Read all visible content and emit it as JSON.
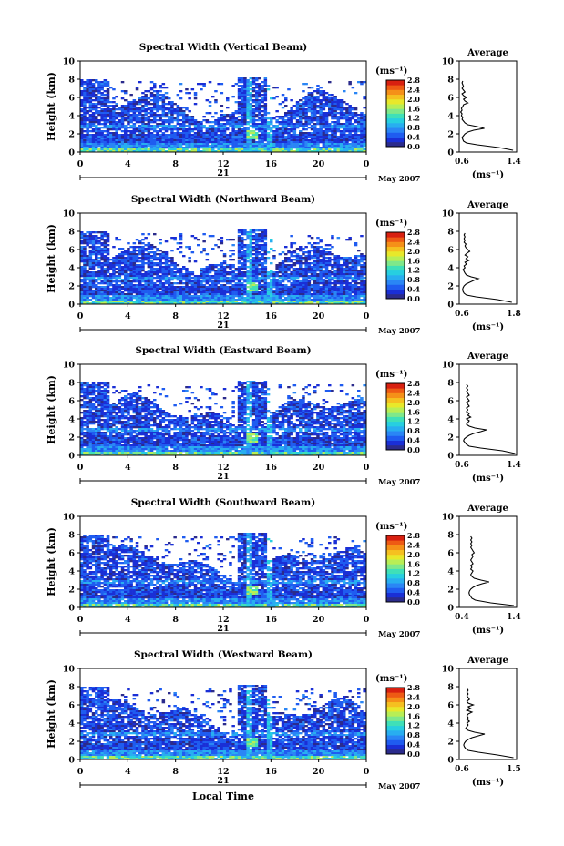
{
  "shared": {
    "date_label": "May 2007",
    "day_label": "21",
    "units_label": "(ms⁻¹)",
    "ylabel": "Height (km)",
    "xlabel": "Local Time",
    "avg_title": "Average",
    "x_ticks": [
      "0",
      "4",
      "8",
      "12",
      "16",
      "20",
      "0"
    ],
    "y_ticks": [
      "0",
      "2",
      "4",
      "6",
      "8",
      "10"
    ],
    "cbar_ticks": [
      "0.0",
      "0.4",
      "0.8",
      "1.2",
      "1.6",
      "2.0",
      "2.4",
      "2.8"
    ],
    "cbar_colors": [
      "#2b2b8c",
      "#1a2fd6",
      "#1f5cf0",
      "#2a86f5",
      "#28aef0",
      "#27cfe0",
      "#3fe0b8",
      "#7fe88a",
      "#b8ee55",
      "#e8e82a",
      "#f5c020",
      "#f59018",
      "#ee5a14",
      "#d82010"
    ]
  },
  "chart_data": [
    {
      "type": "heatmap",
      "title": "Spectral Width (Vertical Beam)",
      "xlim": [
        0,
        24
      ],
      "ylim": [
        0,
        10
      ],
      "colorbar_range": [
        0.0,
        2.8
      ],
      "avg_profile": {
        "xlim": [
          0.6,
          1.4
        ],
        "x_ticks": [
          "0.6",
          "1.4"
        ],
        "y": [
          0.2,
          0.5,
          0.8,
          1.0,
          1.2,
          1.4,
          1.6,
          1.8,
          2.0,
          2.2,
          2.4,
          2.6,
          2.8,
          3.0,
          3.2,
          3.4,
          3.6,
          3.8,
          4.0,
          4.2,
          4.4,
          4.6,
          4.8,
          5.0,
          5.2,
          5.4,
          5.6,
          5.8,
          6.0,
          6.2,
          6.4,
          6.6,
          6.8,
          7.0,
          7.2,
          7.4,
          7.6,
          7.8
        ],
        "x": [
          1.35,
          1.15,
          0.85,
          0.7,
          0.66,
          0.65,
          0.64,
          0.66,
          0.68,
          0.72,
          0.8,
          0.95,
          0.85,
          0.72,
          0.68,
          0.66,
          0.64,
          0.65,
          0.63,
          0.64,
          0.62,
          0.64,
          0.63,
          0.65,
          0.66,
          0.72,
          0.68,
          0.66,
          0.7,
          0.66,
          0.64,
          0.68,
          0.66,
          0.64,
          0.66,
          0.65,
          0.64,
          0.65
        ]
      }
    },
    {
      "type": "heatmap",
      "title": "Spectral Width (Northward Beam)",
      "xlim": [
        0,
        24
      ],
      "ylim": [
        0,
        10
      ],
      "colorbar_range": [
        0.0,
        2.8
      ],
      "avg_profile": {
        "xlim": [
          0.6,
          1.8
        ],
        "x_ticks": [
          "0.6",
          "1.8"
        ],
        "y": [
          0.2,
          0.5,
          0.8,
          1.0,
          1.2,
          1.4,
          1.6,
          1.8,
          2.0,
          2.2,
          2.4,
          2.6,
          2.8,
          3.0,
          3.2,
          3.4,
          3.6,
          3.8,
          4.0,
          4.2,
          4.4,
          4.6,
          4.8,
          5.0,
          5.2,
          5.4,
          5.6,
          5.8,
          6.0,
          6.2,
          6.4,
          6.6,
          6.8,
          7.0,
          7.2,
          7.4,
          7.6,
          7.8
        ],
        "x": [
          1.7,
          1.4,
          0.95,
          0.75,
          0.7,
          0.68,
          0.67,
          0.68,
          0.7,
          0.74,
          0.82,
          0.9,
          1.0,
          0.85,
          0.75,
          0.72,
          0.7,
          0.68,
          0.72,
          0.7,
          0.75,
          0.72,
          0.8,
          0.74,
          0.78,
          0.72,
          0.76,
          0.82,
          0.78,
          0.74,
          0.72,
          0.74,
          0.7,
          0.72,
          0.7,
          0.72,
          0.7,
          0.72
        ]
      }
    },
    {
      "type": "heatmap",
      "title": "Spectral Width (Eastward Beam)",
      "xlim": [
        0,
        24
      ],
      "ylim": [
        0,
        10
      ],
      "colorbar_range": [
        0.0,
        2.8
      ],
      "avg_profile": {
        "xlim": [
          0.6,
          1.4
        ],
        "x_ticks": [
          "0.6",
          "1.4"
        ],
        "y": [
          0.2,
          0.5,
          0.8,
          1.0,
          1.2,
          1.4,
          1.6,
          1.8,
          2.0,
          2.2,
          2.4,
          2.6,
          2.8,
          3.0,
          3.2,
          3.4,
          3.6,
          3.8,
          4.0,
          4.2,
          4.4,
          4.6,
          4.8,
          5.0,
          5.2,
          5.4,
          5.6,
          5.8,
          6.0,
          6.2,
          6.4,
          6.6,
          6.8,
          7.0,
          7.2,
          7.4,
          7.6,
          7.8
        ],
        "x": [
          1.38,
          1.2,
          0.9,
          0.74,
          0.7,
          0.68,
          0.66,
          0.67,
          0.7,
          0.74,
          0.8,
          0.9,
          0.98,
          0.82,
          0.74,
          0.7,
          0.72,
          0.74,
          0.7,
          0.76,
          0.72,
          0.74,
          0.7,
          0.72,
          0.7,
          0.74,
          0.72,
          0.7,
          0.74,
          0.72,
          0.7,
          0.74,
          0.72,
          0.7,
          0.72,
          0.7,
          0.72,
          0.7
        ]
      }
    },
    {
      "type": "heatmap",
      "title": "Spectral Width (Southward Beam)",
      "xlim": [
        0,
        24
      ],
      "ylim": [
        0,
        10
      ],
      "colorbar_range": [
        0.0,
        2.8
      ],
      "avg_profile": {
        "xlim": [
          0.4,
          1.4
        ],
        "x_ticks": [
          "0.4",
          "1.4"
        ],
        "y": [
          0.2,
          0.5,
          0.8,
          1.0,
          1.2,
          1.4,
          1.6,
          1.8,
          2.0,
          2.2,
          2.4,
          2.6,
          2.8,
          3.0,
          3.2,
          3.4,
          3.6,
          3.8,
          4.0,
          4.2,
          4.4,
          4.6,
          4.8,
          5.0,
          5.2,
          5.4,
          5.6,
          5.8,
          6.0,
          6.2,
          6.4,
          6.6,
          6.8,
          7.0,
          7.2,
          7.4,
          7.6,
          7.8
        ],
        "x": [
          1.35,
          0.95,
          0.68,
          0.62,
          0.6,
          0.58,
          0.57,
          0.58,
          0.6,
          0.64,
          0.7,
          0.8,
          0.92,
          0.78,
          0.66,
          0.62,
          0.6,
          0.62,
          0.64,
          0.6,
          0.62,
          0.6,
          0.64,
          0.62,
          0.6,
          0.62,
          0.64,
          0.62,
          0.66,
          0.64,
          0.62,
          0.6,
          0.62,
          0.6,
          0.62,
          0.6,
          0.62,
          0.6
        ]
      }
    },
    {
      "type": "heatmap",
      "title": "Spectral Width (Westward Beam)",
      "xlim": [
        0,
        24
      ],
      "ylim": [
        0,
        10
      ],
      "colorbar_range": [
        0.0,
        2.8
      ],
      "avg_profile": {
        "xlim": [
          0.6,
          1.5
        ],
        "x_ticks": [
          "0.6",
          "1.5"
        ],
        "y": [
          0.2,
          0.5,
          0.8,
          1.0,
          1.2,
          1.4,
          1.6,
          1.8,
          2.0,
          2.2,
          2.4,
          2.6,
          2.8,
          3.0,
          3.2,
          3.4,
          3.6,
          3.8,
          4.0,
          4.2,
          4.4,
          4.6,
          4.8,
          5.0,
          5.2,
          5.4,
          5.6,
          5.8,
          6.0,
          6.2,
          6.4,
          6.6,
          6.8,
          7.0,
          7.2,
          7.4,
          7.6,
          7.8
        ],
        "x": [
          1.45,
          1.2,
          0.9,
          0.74,
          0.7,
          0.68,
          0.67,
          0.68,
          0.7,
          0.74,
          0.8,
          0.9,
          1.0,
          0.84,
          0.74,
          0.7,
          0.72,
          0.74,
          0.72,
          0.76,
          0.72,
          0.74,
          0.72,
          0.74,
          0.8,
          0.72,
          0.78,
          0.74,
          0.82,
          0.74,
          0.72,
          0.76,
          0.74,
          0.72,
          0.74,
          0.72,
          0.74,
          0.72
        ]
      }
    }
  ]
}
